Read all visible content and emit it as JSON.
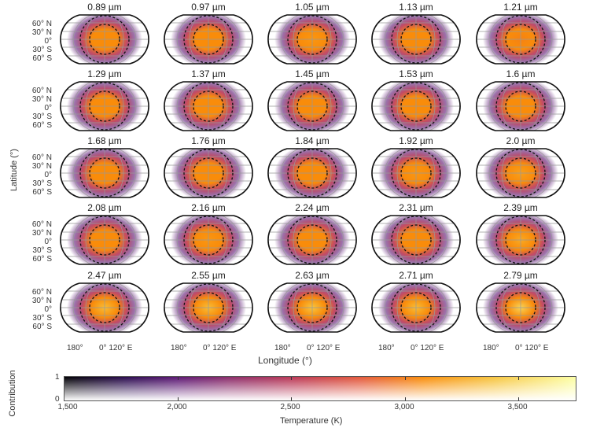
{
  "chart_data": {
    "type": "heatmap",
    "title": "",
    "description": "Grid of 25 orthographic/Robinson-like map projections showing spatially resolved brightness temperature contribution at different wavelengths. Dashed circles indicate regions of interest centered on substellar point.",
    "panels": [
      {
        "label": "0.89 µm",
        "peak_temp_k": 3050,
        "row": 0,
        "col": 0
      },
      {
        "label": "0.97 µm",
        "peak_temp_k": 3050,
        "row": 0,
        "col": 1
      },
      {
        "label": "1.05 µm",
        "peak_temp_k": 3100,
        "row": 0,
        "col": 2
      },
      {
        "label": "1.13 µm",
        "peak_temp_k": 3050,
        "row": 0,
        "col": 3
      },
      {
        "label": "1.21 µm",
        "peak_temp_k": 3000,
        "row": 0,
        "col": 4
      },
      {
        "label": "1.29 µm",
        "peak_temp_k": 3050,
        "row": 1,
        "col": 0
      },
      {
        "label": "1.37 µm",
        "peak_temp_k": 3050,
        "row": 1,
        "col": 1
      },
      {
        "label": "1.45 µm",
        "peak_temp_k": 3050,
        "row": 1,
        "col": 2
      },
      {
        "label": "1.53 µm",
        "peak_temp_k": 3050,
        "row": 1,
        "col": 3
      },
      {
        "label": "1.6 µm",
        "peak_temp_k": 3050,
        "row": 1,
        "col": 4
      },
      {
        "label": "1.68 µm",
        "peak_temp_k": 3050,
        "row": 2,
        "col": 0
      },
      {
        "label": "1.76 µm",
        "peak_temp_k": 3050,
        "row": 2,
        "col": 1
      },
      {
        "label": "1.84 µm",
        "peak_temp_k": 3050,
        "row": 2,
        "col": 2
      },
      {
        "label": "1.92 µm",
        "peak_temp_k": 3100,
        "row": 2,
        "col": 3
      },
      {
        "label": "2.0 µm",
        "peak_temp_k": 3150,
        "row": 2,
        "col": 4
      },
      {
        "label": "2.08 µm",
        "peak_temp_k": 3050,
        "row": 3,
        "col": 0
      },
      {
        "label": "2.16 µm",
        "peak_temp_k": 3100,
        "row": 3,
        "col": 1
      },
      {
        "label": "2.24 µm",
        "peak_temp_k": 3050,
        "row": 3,
        "col": 2
      },
      {
        "label": "2.31 µm",
        "peak_temp_k": 3050,
        "row": 3,
        "col": 3
      },
      {
        "label": "2.39 µm",
        "peak_temp_k": 3200,
        "row": 3,
        "col": 4
      },
      {
        "label": "2.47 µm",
        "peak_temp_k": 3300,
        "row": 4,
        "col": 0
      },
      {
        "label": "2.55 µm",
        "peak_temp_k": 3300,
        "row": 4,
        "col": 1
      },
      {
        "label": "2.63 µm",
        "peak_temp_k": 3350,
        "row": 4,
        "col": 2
      },
      {
        "label": "2.71 µm",
        "peak_temp_k": 3300,
        "row": 4,
        "col": 3
      },
      {
        "label": "2.79 µm",
        "peak_temp_k": 3450,
        "row": 4,
        "col": 4
      }
    ],
    "ylabel": "Latitude (°)",
    "xlabel": "Longitude (°)",
    "lat_ticks": [
      "60° N",
      "30° N",
      "0°",
      "30° S",
      "60° S"
    ],
    "lon_ticks": [
      "180°",
      "0°",
      "120° E"
    ],
    "colorbar": {
      "xlabel": "Temperature (K)",
      "ylabel": "Contribution",
      "x_ticks": [
        "1,500",
        "2,000",
        "2,500",
        "3,000",
        "3,500"
      ],
      "x_range": [
        1500,
        3750
      ],
      "y_ticks": [
        "1",
        "0"
      ],
      "y_range": [
        0,
        1
      ],
      "colormap": "inferno"
    }
  },
  "labels": {
    "ylabel": "Latitude (°)",
    "xlabel": "Longitude (°)",
    "lat": [
      "60° N",
      "30° N",
      "0°",
      "30° S",
      "60° S"
    ],
    "lon_180": "180°",
    "lon_0_120": "0° 120° E",
    "cbar_xlabel": "Temperature (K)",
    "cbar_ylabel": "Contribution",
    "cbar_xticks": [
      "1,500",
      "2,000",
      "2,500",
      "3,000",
      "3,500"
    ],
    "cbar_y1": "1",
    "cbar_y0": "0"
  }
}
